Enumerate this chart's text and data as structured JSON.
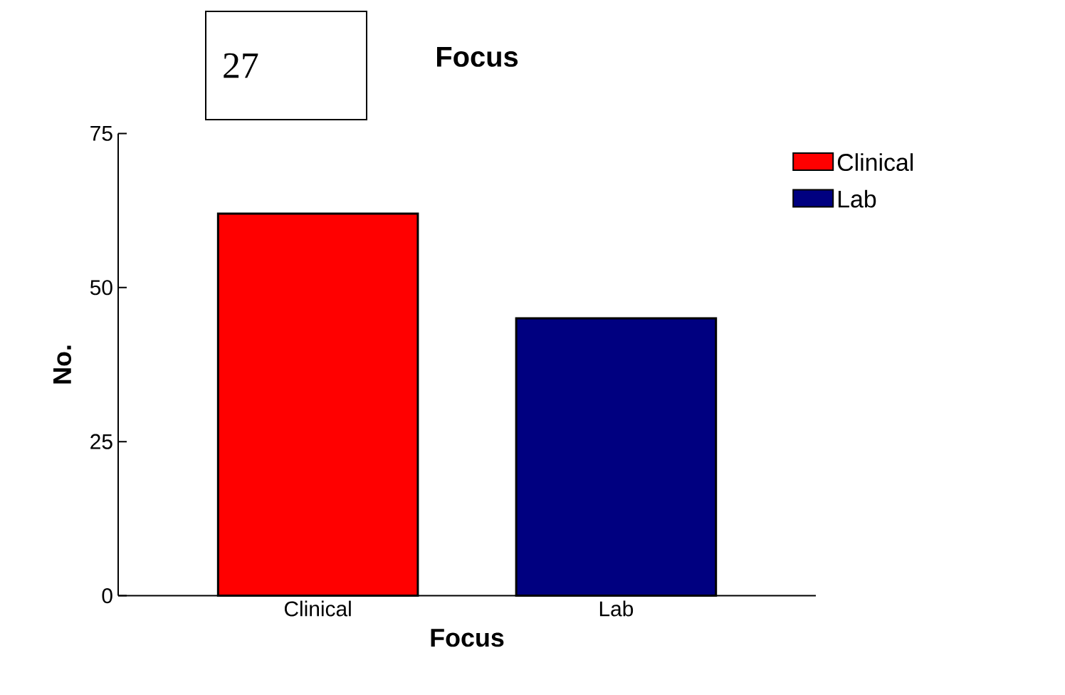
{
  "chart_data": {
    "type": "bar",
    "title": "Focus",
    "xlabel": "Focus",
    "ylabel": "No.",
    "annotations": [
      "27"
    ],
    "categories": [
      "Clinical",
      "Lab"
    ],
    "series": [
      {
        "name": "Clinical",
        "color": "#ff0000",
        "values": [
          62,
          null
        ]
      },
      {
        "name": "Lab",
        "color": "#000080",
        "values": [
          null,
          45
        ]
      }
    ],
    "ylim": [
      0,
      75
    ],
    "yticks": [
      0,
      25,
      50,
      75
    ],
    "legend": "top right"
  }
}
